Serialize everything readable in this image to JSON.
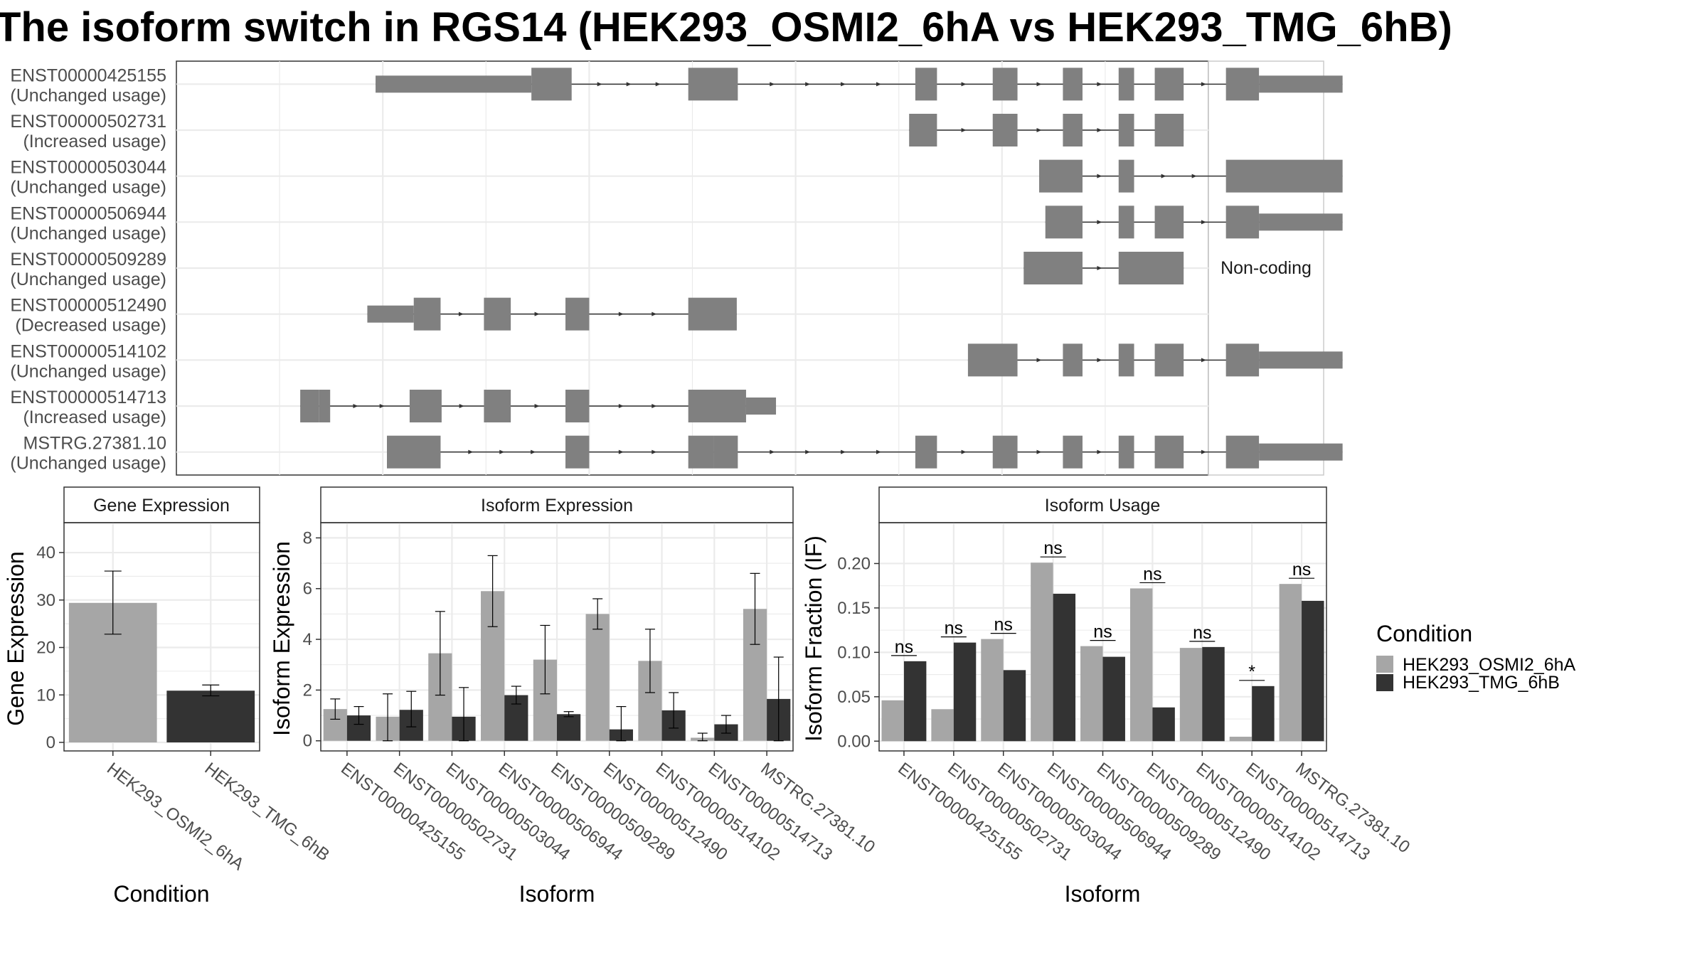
{
  "chart_data": [
    {
      "type": "isoform-structure",
      "title": "The isoform switch in RGS14 (HEK293_OSMI2_6hA vs HEK293_TMG_6hB)",
      "facet_label": "Non-coding",
      "transcripts": [
        {
          "id": "ENST00000425155",
          "usage": "(Unchanged usage)",
          "exons": [
            [
              0.193,
              0.344
            ],
            [
              0.344,
              0.383
            ],
            [
              0.496,
              0.544
            ],
            [
              0.716,
              0.737
            ],
            [
              0.791,
              0.815
            ],
            [
              0.859,
              0.878
            ],
            [
              0.913,
              0.928
            ],
            [
              0.948,
              0.976
            ],
            [
              1.017,
              1.049
            ],
            [
              1.049,
              1.13
            ]
          ]
        },
        {
          "id": "ENST00000502731",
          "usage": "(Increased usage)",
          "exons": [
            [
              0.71,
              0.737
            ],
            [
              0.791,
              0.815
            ],
            [
              0.859,
              0.878
            ],
            [
              0.913,
              0.928
            ],
            [
              0.948,
              0.976
            ]
          ]
        },
        {
          "id": "ENST00000503044",
          "usage": "(Unchanged usage)",
          "exons": [
            [
              0.836,
              0.878
            ],
            [
              0.913,
              0.928
            ],
            [
              1.017,
              1.13
            ]
          ]
        },
        {
          "id": "ENST00000506944",
          "usage": "(Unchanged usage)",
          "exons": [
            [
              0.842,
              0.878
            ],
            [
              0.913,
              0.928
            ],
            [
              0.948,
              0.976
            ],
            [
              1.017,
              1.049
            ],
            [
              1.049,
              1.13
            ]
          ]
        },
        {
          "id": "ENST00000509289",
          "usage": "(Unchanged usage)",
          "exons": [
            [
              0.821,
              0.878
            ],
            [
              0.913,
              0.976
            ]
          ]
        },
        {
          "id": "ENST00000512490",
          "usage": "(Decreased usage)",
          "exons": [
            [
              0.185,
              0.23
            ],
            [
              0.23,
              0.256
            ],
            [
              0.298,
              0.324
            ],
            [
              0.377,
              0.4
            ],
            [
              0.496,
              0.543
            ]
          ]
        },
        {
          "id": "ENST00000514102",
          "usage": "(Unchanged usage)",
          "exons": [
            [
              0.767,
              0.815
            ],
            [
              0.859,
              0.878
            ],
            [
              0.913,
              0.928
            ],
            [
              0.948,
              0.976
            ],
            [
              1.017,
              1.049
            ],
            [
              1.049,
              1.13
            ]
          ]
        },
        {
          "id": "ENST00000514713",
          "usage": "(Increased usage)",
          "exons": [
            [
              0.12,
              0.138
            ],
            [
              0.138,
              0.149
            ],
            [
              0.226,
              0.257
            ],
            [
              0.298,
              0.324
            ],
            [
              0.377,
              0.4
            ],
            [
              0.496,
              0.552
            ],
            [
              0.552,
              0.581
            ]
          ]
        },
        {
          "id": "MSTRG.27381.10",
          "usage": "(Unchanged usage)",
          "exons": [
            [
              0.204,
              0.256
            ],
            [
              0.377,
              0.4
            ],
            [
              0.496,
              0.521
            ],
            [
              0.521,
              0.544
            ],
            [
              0.716,
              0.737
            ],
            [
              0.791,
              0.815
            ],
            [
              0.859,
              0.878
            ],
            [
              0.913,
              0.928
            ],
            [
              0.948,
              0.976
            ],
            [
              1.017,
              1.049
            ],
            [
              1.049,
              1.13
            ]
          ]
        }
      ]
    },
    {
      "type": "bar",
      "facet_label": "Gene Expression",
      "xlabel": "Condition",
      "ylabel": "Gene Expression",
      "categories": [
        "HEK293_OSMI2_6hA",
        "HEK293_TMG_6hB"
      ],
      "values": [
        29.4,
        10.9
      ],
      "error_low": [
        22.8,
        9.8
      ],
      "error_high": [
        36.1,
        12.1
      ],
      "yticks": [
        0,
        10,
        20,
        30,
        40
      ],
      "ylim": [
        -1.8,
        46.3
      ]
    },
    {
      "type": "bar",
      "facet_label": "Isoform Expression",
      "xlabel": "Isoform",
      "ylabel": "Isoform Expression",
      "categories": [
        "ENST00000425155",
        "ENST00000502731",
        "ENST00000503044",
        "ENST00000506944",
        "ENST00000509289",
        "ENST00000512490",
        "ENST00000514102",
        "ENST00000514713",
        "MSTRG.27381.10"
      ],
      "series": [
        {
          "name": "HEK293_OSMI2_6hA",
          "values": [
            1.25,
            0.95,
            3.45,
            5.9,
            3.2,
            5.0,
            3.15,
            0.12,
            5.2
          ],
          "error_low": [
            0.85,
            0.0,
            1.8,
            4.5,
            1.85,
            4.4,
            1.9,
            0.0,
            3.8
          ],
          "error_high": [
            1.65,
            1.85,
            5.1,
            7.3,
            4.55,
            5.6,
            4.4,
            0.3,
            6.6
          ]
        },
        {
          "name": "HEK293_TMG_6hB",
          "values": [
            1.0,
            1.22,
            0.95,
            1.8,
            1.05,
            0.45,
            1.2,
            0.65,
            1.65
          ],
          "error_low": [
            0.65,
            0.55,
            0.0,
            1.45,
            0.95,
            0.0,
            0.5,
            0.3,
            0.0
          ],
          "error_high": [
            1.35,
            1.95,
            2.1,
            2.15,
            1.15,
            1.35,
            1.9,
            1.0,
            3.3
          ]
        }
      ],
      "yticks": [
        0,
        2,
        4,
        6,
        8
      ],
      "ylim": [
        -0.4,
        8.6
      ]
    },
    {
      "type": "bar",
      "facet_label": "Isoform Usage",
      "xlabel": "Isoform",
      "ylabel": "Isoform Fraction (IF)",
      "categories": [
        "ENST00000425155",
        "ENST00000502731",
        "ENST00000503044",
        "ENST00000506944",
        "ENST00000509289",
        "ENST00000512490",
        "ENST00000514102",
        "ENST00000514713",
        "MSTRG.27381.10"
      ],
      "series": [
        {
          "name": "HEK293_OSMI2_6hA",
          "values": [
            0.046,
            0.036,
            0.115,
            0.201,
            0.107,
            0.172,
            0.105,
            0.005,
            0.177
          ]
        },
        {
          "name": "HEK293_TMG_6hB",
          "values": [
            0.09,
            0.111,
            0.08,
            0.166,
            0.095,
            0.038,
            0.106,
            0.062,
            0.158
          ]
        }
      ],
      "significance": [
        "ns",
        "ns",
        "ns",
        "ns",
        "ns",
        "ns",
        "ns",
        "*",
        "ns"
      ],
      "yticks": [
        0.0,
        0.05,
        0.1,
        0.15,
        0.2
      ],
      "yticklabels": [
        "0.00",
        "0.05",
        "0.10",
        "0.15",
        "0.20"
      ],
      "ylim": [
        -0.011,
        0.246
      ]
    }
  ],
  "legend": {
    "title": "Condition",
    "items": [
      {
        "label": "HEK293_OSMI2_6hA",
        "color": "#a6a6a6"
      },
      {
        "label": "HEK293_TMG_6hB",
        "color": "#333333"
      }
    ]
  },
  "colors": {
    "exon": "#808080",
    "condition_a": "#a6a6a6",
    "condition_b": "#333333",
    "grid": "#ebebeb"
  }
}
